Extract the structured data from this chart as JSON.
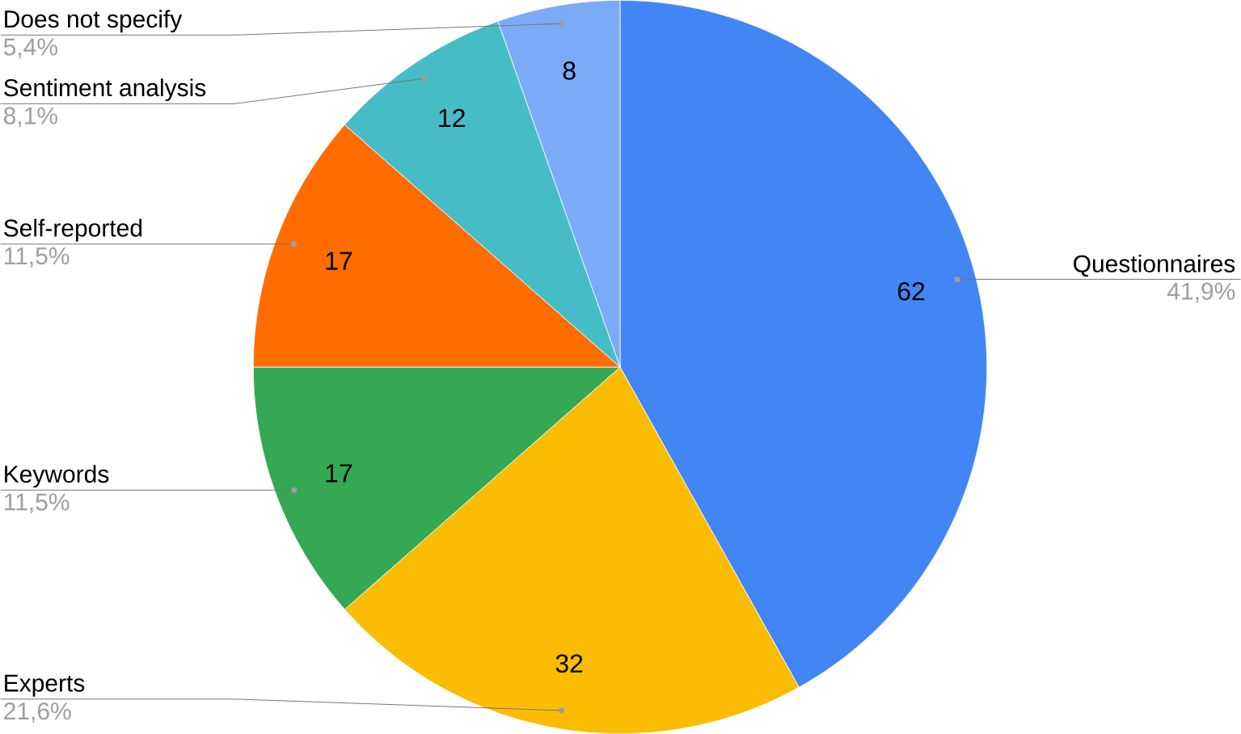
{
  "chart_data": {
    "type": "pie",
    "categories": [
      "Questionnaires",
      "Experts",
      "Keywords",
      "Self-reported",
      "Sentiment analysis",
      "Does not specify"
    ],
    "values": [
      62,
      32,
      17,
      17,
      12,
      8
    ],
    "colors": [
      "#4285f4",
      "#fbbc04",
      "#34a853",
      "#ff6d01",
      "#46bdc6",
      "#7baaf7"
    ],
    "data_labels": true,
    "annotations": [
      "41,9%",
      "21,6%",
      "11,5%",
      "11,5%",
      "8,1%",
      "5,4%"
    ]
  }
}
